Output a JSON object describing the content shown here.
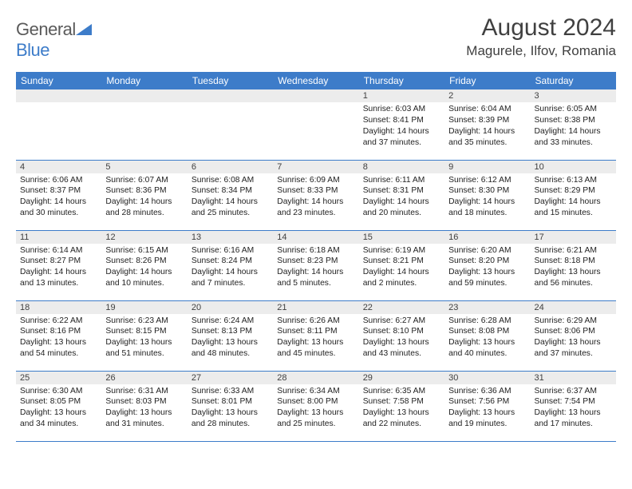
{
  "brand": {
    "part1": "General",
    "part2": "Blue",
    "text_color_gray": "#5a5a5a",
    "text_color_blue": "#3d7cc9",
    "triangle_color": "#3d7cc9"
  },
  "title": "August 2024",
  "location": "Magurele, Ilfov, Romania",
  "colors": {
    "header_bg": "#3d7cc9",
    "header_text": "#ffffff",
    "daynum_bg": "#ececec",
    "row_border": "#3d7cc9",
    "body_text": "#222222",
    "title_text": "#404040"
  },
  "weekdays": [
    "Sunday",
    "Monday",
    "Tuesday",
    "Wednesday",
    "Thursday",
    "Friday",
    "Saturday"
  ],
  "weeks": [
    [
      {
        "empty": true
      },
      {
        "empty": true
      },
      {
        "empty": true
      },
      {
        "empty": true
      },
      {
        "day": "1",
        "sunrise": "Sunrise: 6:03 AM",
        "sunset": "Sunset: 8:41 PM",
        "daylight1": "Daylight: 14 hours",
        "daylight2": "and 37 minutes."
      },
      {
        "day": "2",
        "sunrise": "Sunrise: 6:04 AM",
        "sunset": "Sunset: 8:39 PM",
        "daylight1": "Daylight: 14 hours",
        "daylight2": "and 35 minutes."
      },
      {
        "day": "3",
        "sunrise": "Sunrise: 6:05 AM",
        "sunset": "Sunset: 8:38 PM",
        "daylight1": "Daylight: 14 hours",
        "daylight2": "and 33 minutes."
      }
    ],
    [
      {
        "day": "4",
        "sunrise": "Sunrise: 6:06 AM",
        "sunset": "Sunset: 8:37 PM",
        "daylight1": "Daylight: 14 hours",
        "daylight2": "and 30 minutes."
      },
      {
        "day": "5",
        "sunrise": "Sunrise: 6:07 AM",
        "sunset": "Sunset: 8:36 PM",
        "daylight1": "Daylight: 14 hours",
        "daylight2": "and 28 minutes."
      },
      {
        "day": "6",
        "sunrise": "Sunrise: 6:08 AM",
        "sunset": "Sunset: 8:34 PM",
        "daylight1": "Daylight: 14 hours",
        "daylight2": "and 25 minutes."
      },
      {
        "day": "7",
        "sunrise": "Sunrise: 6:09 AM",
        "sunset": "Sunset: 8:33 PM",
        "daylight1": "Daylight: 14 hours",
        "daylight2": "and 23 minutes."
      },
      {
        "day": "8",
        "sunrise": "Sunrise: 6:11 AM",
        "sunset": "Sunset: 8:31 PM",
        "daylight1": "Daylight: 14 hours",
        "daylight2": "and 20 minutes."
      },
      {
        "day": "9",
        "sunrise": "Sunrise: 6:12 AM",
        "sunset": "Sunset: 8:30 PM",
        "daylight1": "Daylight: 14 hours",
        "daylight2": "and 18 minutes."
      },
      {
        "day": "10",
        "sunrise": "Sunrise: 6:13 AM",
        "sunset": "Sunset: 8:29 PM",
        "daylight1": "Daylight: 14 hours",
        "daylight2": "and 15 minutes."
      }
    ],
    [
      {
        "day": "11",
        "sunrise": "Sunrise: 6:14 AM",
        "sunset": "Sunset: 8:27 PM",
        "daylight1": "Daylight: 14 hours",
        "daylight2": "and 13 minutes."
      },
      {
        "day": "12",
        "sunrise": "Sunrise: 6:15 AM",
        "sunset": "Sunset: 8:26 PM",
        "daylight1": "Daylight: 14 hours",
        "daylight2": "and 10 minutes."
      },
      {
        "day": "13",
        "sunrise": "Sunrise: 6:16 AM",
        "sunset": "Sunset: 8:24 PM",
        "daylight1": "Daylight: 14 hours",
        "daylight2": "and 7 minutes."
      },
      {
        "day": "14",
        "sunrise": "Sunrise: 6:18 AM",
        "sunset": "Sunset: 8:23 PM",
        "daylight1": "Daylight: 14 hours",
        "daylight2": "and 5 minutes."
      },
      {
        "day": "15",
        "sunrise": "Sunrise: 6:19 AM",
        "sunset": "Sunset: 8:21 PM",
        "daylight1": "Daylight: 14 hours",
        "daylight2": "and 2 minutes."
      },
      {
        "day": "16",
        "sunrise": "Sunrise: 6:20 AM",
        "sunset": "Sunset: 8:20 PM",
        "daylight1": "Daylight: 13 hours",
        "daylight2": "and 59 minutes."
      },
      {
        "day": "17",
        "sunrise": "Sunrise: 6:21 AM",
        "sunset": "Sunset: 8:18 PM",
        "daylight1": "Daylight: 13 hours",
        "daylight2": "and 56 minutes."
      }
    ],
    [
      {
        "day": "18",
        "sunrise": "Sunrise: 6:22 AM",
        "sunset": "Sunset: 8:16 PM",
        "daylight1": "Daylight: 13 hours",
        "daylight2": "and 54 minutes."
      },
      {
        "day": "19",
        "sunrise": "Sunrise: 6:23 AM",
        "sunset": "Sunset: 8:15 PM",
        "daylight1": "Daylight: 13 hours",
        "daylight2": "and 51 minutes."
      },
      {
        "day": "20",
        "sunrise": "Sunrise: 6:24 AM",
        "sunset": "Sunset: 8:13 PM",
        "daylight1": "Daylight: 13 hours",
        "daylight2": "and 48 minutes."
      },
      {
        "day": "21",
        "sunrise": "Sunrise: 6:26 AM",
        "sunset": "Sunset: 8:11 PM",
        "daylight1": "Daylight: 13 hours",
        "daylight2": "and 45 minutes."
      },
      {
        "day": "22",
        "sunrise": "Sunrise: 6:27 AM",
        "sunset": "Sunset: 8:10 PM",
        "daylight1": "Daylight: 13 hours",
        "daylight2": "and 43 minutes."
      },
      {
        "day": "23",
        "sunrise": "Sunrise: 6:28 AM",
        "sunset": "Sunset: 8:08 PM",
        "daylight1": "Daylight: 13 hours",
        "daylight2": "and 40 minutes."
      },
      {
        "day": "24",
        "sunrise": "Sunrise: 6:29 AM",
        "sunset": "Sunset: 8:06 PM",
        "daylight1": "Daylight: 13 hours",
        "daylight2": "and 37 minutes."
      }
    ],
    [
      {
        "day": "25",
        "sunrise": "Sunrise: 6:30 AM",
        "sunset": "Sunset: 8:05 PM",
        "daylight1": "Daylight: 13 hours",
        "daylight2": "and 34 minutes."
      },
      {
        "day": "26",
        "sunrise": "Sunrise: 6:31 AM",
        "sunset": "Sunset: 8:03 PM",
        "daylight1": "Daylight: 13 hours",
        "daylight2": "and 31 minutes."
      },
      {
        "day": "27",
        "sunrise": "Sunrise: 6:33 AM",
        "sunset": "Sunset: 8:01 PM",
        "daylight1": "Daylight: 13 hours",
        "daylight2": "and 28 minutes."
      },
      {
        "day": "28",
        "sunrise": "Sunrise: 6:34 AM",
        "sunset": "Sunset: 8:00 PM",
        "daylight1": "Daylight: 13 hours",
        "daylight2": "and 25 minutes."
      },
      {
        "day": "29",
        "sunrise": "Sunrise: 6:35 AM",
        "sunset": "Sunset: 7:58 PM",
        "daylight1": "Daylight: 13 hours",
        "daylight2": "and 22 minutes."
      },
      {
        "day": "30",
        "sunrise": "Sunrise: 6:36 AM",
        "sunset": "Sunset: 7:56 PM",
        "daylight1": "Daylight: 13 hours",
        "daylight2": "and 19 minutes."
      },
      {
        "day": "31",
        "sunrise": "Sunrise: 6:37 AM",
        "sunset": "Sunset: 7:54 PM",
        "daylight1": "Daylight: 13 hours",
        "daylight2": "and 17 minutes."
      }
    ]
  ]
}
